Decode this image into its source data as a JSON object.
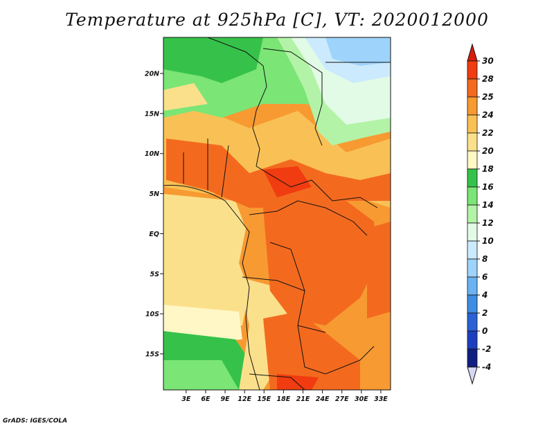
{
  "title": "Temperature at 925hPa [C], VT: 2020012000",
  "credit": "GrADS: IGES/COLA",
  "map": {
    "extent": {
      "lon": [
        -0.5,
        34.5
      ],
      "lat": [
        -19.5,
        24.5
      ]
    },
    "lon_ticks": [
      {
        "value": 3,
        "label": "3E"
      },
      {
        "value": 6,
        "label": "6E"
      },
      {
        "value": 9,
        "label": "9E"
      },
      {
        "value": 12,
        "label": "12E"
      },
      {
        "value": 15,
        "label": "15E"
      },
      {
        "value": 18,
        "label": "18E"
      },
      {
        "value": 21,
        "label": "21E"
      },
      {
        "value": 24,
        "label": "24E"
      },
      {
        "value": 27,
        "label": "27E"
      },
      {
        "value": 30,
        "label": "30E"
      },
      {
        "value": 33,
        "label": "33E"
      }
    ],
    "lat_ticks": [
      {
        "value": 20,
        "label": "20N"
      },
      {
        "value": 15,
        "label": "15N"
      },
      {
        "value": 10,
        "label": "10N"
      },
      {
        "value": 5,
        "label": "5N"
      },
      {
        "value": 0,
        "label": "EQ"
      },
      {
        "value": -5,
        "label": "5S"
      },
      {
        "value": -10,
        "label": "10S"
      },
      {
        "value": -15,
        "label": "15S"
      }
    ]
  },
  "colorbar": {
    "levels": [
      "30",
      "28",
      "25",
      "24",
      "22",
      "20",
      "18",
      "16",
      "14",
      "12",
      "10",
      "8",
      "6",
      "4",
      "2",
      "0",
      "-2",
      "-4"
    ],
    "colors": [
      "#f03c10",
      "#f36a1f",
      "#f79a32",
      "#f9c155",
      "#fbe08c",
      "#fff7c5",
      "#36c24a",
      "#7be576",
      "#b3f3a7",
      "#e2fbe6",
      "#cbeafd",
      "#9ed3fb",
      "#6ab2f1",
      "#3f8ce3",
      "#2a62d6",
      "#1c3fbe",
      "#101f82"
    ],
    "top_arrow_color": "#d81e0a",
    "bottom_arrow_color": "#d8d8f4"
  }
}
